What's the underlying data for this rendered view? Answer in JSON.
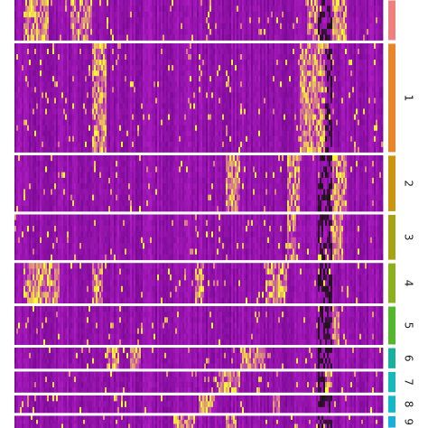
{
  "chart_data": {
    "type": "heatmap",
    "title": "",
    "xlabel": "",
    "ylabel": "",
    "color_scale": {
      "low": "#7a0a94",
      "mid": "#b31ec6",
      "high": "#ffff33",
      "neg": "#1a1410"
    },
    "legend": "none",
    "clusters": [
      {
        "label": "",
        "color": "#f08080",
        "cells": 46,
        "hot_blocks": [
          [
            0.02,
            0.09
          ],
          [
            0.15,
            0.21
          ],
          [
            0.79,
            0.82
          ],
          [
            0.86,
            0.9
          ]
        ]
      },
      {
        "label": "1",
        "color": "#e8852a",
        "cells": 124,
        "hot_blocks": [
          [
            0.21,
            0.25
          ],
          [
            0.77,
            0.84
          ]
        ]
      },
      {
        "label": "2",
        "color": "#c9950c",
        "cells": 64,
        "hot_blocks": [
          [
            0.57,
            0.61
          ],
          [
            0.74,
            0.77
          ],
          [
            0.86,
            0.9
          ]
        ]
      },
      {
        "label": "3",
        "color": "#a7a215",
        "cells": 52,
        "hot_blocks": [
          [
            0.74,
            0.76
          ],
          [
            0.86,
            0.89
          ]
        ]
      },
      {
        "label": "4",
        "color": "#8ab01e",
        "cells": 46,
        "hot_blocks": [
          [
            0.02,
            0.12
          ],
          [
            0.21,
            0.24
          ],
          [
            0.49,
            0.51
          ],
          [
            0.68,
            0.74
          ]
        ]
      },
      {
        "label": "5",
        "color": "#55b52c",
        "cells": 44,
        "hot_blocks": [
          [
            0.86,
            0.88
          ]
        ]
      },
      {
        "label": "6",
        "color": "#1ab0a0",
        "cells": 24,
        "hot_blocks": [
          [
            0.25,
            0.28
          ],
          [
            0.31,
            0.34
          ],
          [
            0.61,
            0.68
          ]
        ]
      },
      {
        "label": "7",
        "color": "#17b8b8",
        "cells": 24,
        "hot_blocks": [
          [
            0.55,
            0.61
          ],
          [
            0.84,
            0.86
          ]
        ]
      },
      {
        "label": "8",
        "color": "#10b8c8",
        "cells": 20,
        "hot_blocks": [
          [
            0.5,
            0.54
          ],
          [
            0.7,
            0.72
          ]
        ]
      },
      {
        "label": "9",
        "color": "#18b0d8",
        "cells": 14,
        "hot_blocks": [
          [
            0.43,
            0.49
          ],
          [
            0.57,
            0.6
          ]
        ]
      }
    ]
  }
}
